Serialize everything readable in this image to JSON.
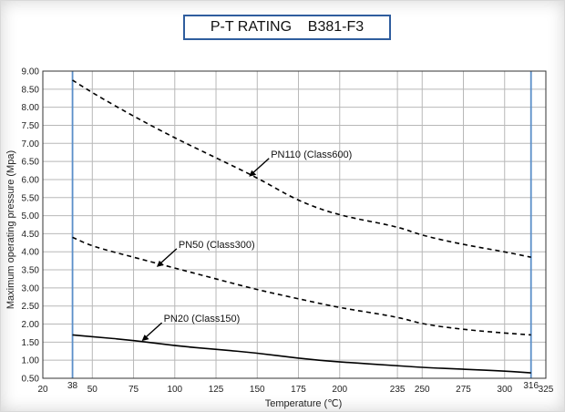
{
  "chart_data": {
    "type": "line",
    "title": "P-T RATING    B381-F3",
    "xlabel": "Temperature (℃)",
    "ylabel": "Maximum operating pressure (Mpa)",
    "xlim": [
      20,
      325
    ],
    "ylim": [
      0.5,
      9.0
    ],
    "x_ticks": [
      20,
      38,
      50,
      75,
      100,
      125,
      150,
      175,
      200,
      235,
      250,
      275,
      300,
      316,
      325
    ],
    "x_tick_labels": [
      "20",
      "38",
      "50",
      "75",
      "100",
      "125",
      "150",
      "175",
      "200",
      "235",
      "250",
      "275",
      "300",
      "316",
      "325"
    ],
    "y_ticks": [
      0.5,
      1.0,
      1.5,
      2.0,
      2.5,
      3.0,
      3.5,
      4.0,
      4.5,
      5.0,
      5.5,
      6.0,
      6.5,
      7.0,
      7.5,
      8.0,
      8.5,
      9.0
    ],
    "y_tick_labels": [
      "0.50",
      "1.00",
      "1.50",
      "2.00",
      "2.50",
      "3.00",
      "3.50",
      "4.00",
      "4.50",
      "5.00",
      "5.50",
      "6.00",
      "6.50",
      "7.00",
      "7.50",
      "8.00",
      "8.50",
      "9.00"
    ],
    "vertical_markers": [
      38,
      316
    ],
    "grid": true,
    "series": [
      {
        "name": "PN110 (Class600)",
        "style": "dashed",
        "x": [
          38,
          50,
          75,
          100,
          125,
          150,
          175,
          200,
          235,
          250,
          275,
          300,
          316
        ],
        "y": [
          8.75,
          8.4,
          7.75,
          7.15,
          6.6,
          6.05,
          5.4,
          5.0,
          4.7,
          4.45,
          4.2,
          4.0,
          3.85
        ],
        "label_at": [
          145,
          6.08
        ]
      },
      {
        "name": "PN50 (Class300)",
        "style": "dashed",
        "x": [
          38,
          50,
          75,
          100,
          125,
          150,
          175,
          200,
          235,
          250,
          275,
          300,
          316
        ],
        "y": [
          4.4,
          4.15,
          3.85,
          3.55,
          3.25,
          2.95,
          2.7,
          2.45,
          2.2,
          2.0,
          1.85,
          1.75,
          1.7
        ],
        "label_at": [
          89,
          3.58
        ]
      },
      {
        "name": "PN20 (Class150)",
        "style": "solid",
        "x": [
          38,
          50,
          75,
          100,
          125,
          150,
          175,
          200,
          235,
          250,
          275,
          300,
          316
        ],
        "y": [
          1.7,
          1.65,
          1.55,
          1.4,
          1.3,
          1.2,
          1.05,
          0.95,
          0.85,
          0.8,
          0.75,
          0.7,
          0.65
        ],
        "label_at": [
          80,
          1.53
        ]
      }
    ],
    "colors": {
      "grid": "#b8b8b8",
      "axis": "#333333",
      "marker": "#5b8fc9",
      "series": "#000000",
      "title_border": "#2f5d9e"
    }
  }
}
